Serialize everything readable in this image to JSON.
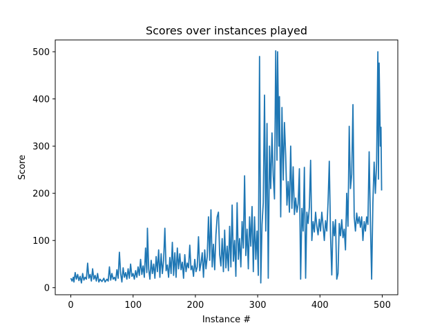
{
  "chart_data": {
    "type": "line",
    "title": "Scores over instances played",
    "xlabel": "Instance #",
    "ylabel": "Score",
    "xlim": [
      -25,
      525
    ],
    "ylim": [
      -15,
      525
    ],
    "xticks": [
      0,
      100,
      200,
      300,
      400,
      500
    ],
    "yticks": [
      0,
      100,
      200,
      300,
      400,
      500
    ],
    "grid": false,
    "legend": "none",
    "series": [
      {
        "color": "#1f77b4",
        "keypoints": [
          [
            0,
            20
          ],
          [
            2,
            14
          ],
          [
            4,
            22
          ],
          [
            5,
            12
          ],
          [
            7,
            32
          ],
          [
            9,
            18
          ],
          [
            11,
            28
          ],
          [
            13,
            15
          ],
          [
            15,
            24
          ],
          [
            17,
            10
          ],
          [
            19,
            30
          ],
          [
            21,
            16
          ],
          [
            23,
            22
          ],
          [
            25,
            18
          ],
          [
            27,
            52
          ],
          [
            29,
            20
          ],
          [
            31,
            28
          ],
          [
            33,
            14
          ],
          [
            35,
            40
          ],
          [
            37,
            18
          ],
          [
            39,
            26
          ],
          [
            41,
            14
          ],
          [
            43,
            30
          ],
          [
            45,
            12
          ],
          [
            47,
            18
          ],
          [
            50,
            13
          ],
          [
            53,
            20
          ],
          [
            55,
            12
          ],
          [
            58,
            18
          ],
          [
            60,
            14
          ],
          [
            62,
            44
          ],
          [
            64,
            16
          ],
          [
            66,
            30
          ],
          [
            68,
            18
          ],
          [
            70,
            22
          ],
          [
            72,
            15
          ],
          [
            74,
            38
          ],
          [
            76,
            20
          ],
          [
            78,
            75
          ],
          [
            80,
            30
          ],
          [
            82,
            12
          ],
          [
            84,
            42
          ],
          [
            86,
            22
          ],
          [
            88,
            32
          ],
          [
            90,
            18
          ],
          [
            92,
            40
          ],
          [
            94,
            20
          ],
          [
            96,
            50
          ],
          [
            98,
            24
          ],
          [
            100,
            30
          ],
          [
            102,
            18
          ],
          [
            104,
            36
          ],
          [
            106,
            22
          ],
          [
            108,
            44
          ],
          [
            110,
            26
          ],
          [
            112,
            60
          ],
          [
            114,
            28
          ],
          [
            116,
            46
          ],
          [
            118,
            22
          ],
          [
            120,
            84
          ],
          [
            122,
            32
          ],
          [
            123,
            126
          ],
          [
            125,
            40
          ],
          [
            127,
            18
          ],
          [
            129,
            58
          ],
          [
            131,
            30
          ],
          [
            133,
            50
          ],
          [
            135,
            20
          ],
          [
            137,
            66
          ],
          [
            139,
            34
          ],
          [
            141,
            80
          ],
          [
            143,
            22
          ],
          [
            145,
            72
          ],
          [
            147,
            30
          ],
          [
            149,
            58
          ],
          [
            151,
            126
          ],
          [
            153,
            36
          ],
          [
            155,
            48
          ],
          [
            157,
            22
          ],
          [
            159,
            64
          ],
          [
            161,
            30
          ],
          [
            163,
            96
          ],
          [
            165,
            26
          ],
          [
            167,
            74
          ],
          [
            169,
            22
          ],
          [
            171,
            84
          ],
          [
            173,
            40
          ],
          [
            175,
            72
          ],
          [
            177,
            38
          ],
          [
            179,
            54
          ],
          [
            181,
            20
          ],
          [
            183,
            70
          ],
          [
            185,
            34
          ],
          [
            187,
            52
          ],
          [
            189,
            42
          ],
          [
            191,
            90
          ],
          [
            193,
            38
          ],
          [
            195,
            46
          ],
          [
            197,
            24
          ],
          [
            199,
            60
          ],
          [
            201,
            34
          ],
          [
            203,
            44
          ],
          [
            205,
            108
          ],
          [
            207,
            36
          ],
          [
            209,
            52
          ],
          [
            211,
            74
          ],
          [
            213,
            22
          ],
          [
            215,
            80
          ],
          [
            217,
            40
          ],
          [
            219,
            66
          ],
          [
            221,
            150
          ],
          [
            223,
            58
          ],
          [
            225,
            165
          ],
          [
            227,
            44
          ],
          [
            229,
            92
          ],
          [
            231,
            38
          ],
          [
            233,
            112
          ],
          [
            235,
            150
          ],
          [
            237,
            160
          ],
          [
            239,
            70
          ],
          [
            241,
            46
          ],
          [
            243,
            104
          ],
          [
            245,
            34
          ],
          [
            247,
            122
          ],
          [
            249,
            42
          ],
          [
            251,
            88
          ],
          [
            253,
            36
          ],
          [
            255,
            130
          ],
          [
            257,
            44
          ],
          [
            259,
            175
          ],
          [
            261,
            56
          ],
          [
            263,
            100
          ],
          [
            265,
            24
          ],
          [
            267,
            180
          ],
          [
            269,
            60
          ],
          [
            271,
            104
          ],
          [
            273,
            44
          ],
          [
            275,
            140
          ],
          [
            277,
            84
          ],
          [
            279,
            237
          ],
          [
            281,
            68
          ],
          [
            283,
            124
          ],
          [
            285,
            40
          ],
          [
            287,
            150
          ],
          [
            289,
            88
          ],
          [
            291,
            172
          ],
          [
            293,
            34
          ],
          [
            295,
            150
          ],
          [
            297,
            60
          ],
          [
            299,
            120
          ],
          [
            301,
            26
          ],
          [
            303,
            490
          ],
          [
            305,
            10
          ],
          [
            307,
            134
          ],
          [
            309,
            180
          ],
          [
            311,
            408
          ],
          [
            313,
            120
          ],
          [
            315,
            348
          ],
          [
            317,
            20
          ],
          [
            319,
            300
          ],
          [
            321,
            210
          ],
          [
            323,
            328
          ],
          [
            325,
            238
          ],
          [
            327,
            188
          ],
          [
            329,
            502
          ],
          [
            331,
            270
          ],
          [
            332,
            500
          ],
          [
            334,
            300
          ],
          [
            335,
            405
          ],
          [
            337,
            150
          ],
          [
            339,
            382
          ],
          [
            341,
            228
          ],
          [
            343,
            350
          ],
          [
            345,
            280
          ],
          [
            347,
            175
          ],
          [
            349,
            225
          ],
          [
            351,
            160
          ],
          [
            353,
            300
          ],
          [
            355,
            168
          ],
          [
            357,
            256
          ],
          [
            359,
            155
          ],
          [
            361,
            190
          ],
          [
            363,
            160
          ],
          [
            365,
            178
          ],
          [
            367,
            252
          ],
          [
            369,
            18
          ],
          [
            371,
            168
          ],
          [
            373,
            120
          ],
          [
            375,
            255
          ],
          [
            377,
            20
          ],
          [
            379,
            160
          ],
          [
            381,
            136
          ],
          [
            383,
            170
          ],
          [
            385,
            270
          ],
          [
            387,
            100
          ],
          [
            389,
            140
          ],
          [
            391,
            118
          ],
          [
            393,
            160
          ],
          [
            395,
            130
          ],
          [
            397,
            112
          ],
          [
            399,
            145
          ],
          [
            401,
            120
          ],
          [
            403,
            160
          ],
          [
            405,
            132
          ],
          [
            407,
            100
          ],
          [
            409,
            142
          ],
          [
            411,
            120
          ],
          [
            413,
            180
          ],
          [
            415,
            268
          ],
          [
            417,
            112
          ],
          [
            419,
            27
          ],
          [
            421,
            140
          ],
          [
            423,
            110
          ],
          [
            425,
            144
          ],
          [
            427,
            18
          ],
          [
            429,
            30
          ],
          [
            431,
            136
          ],
          [
            433,
            110
          ],
          [
            435,
            144
          ],
          [
            437,
            106
          ],
          [
            439,
            124
          ],
          [
            441,
            80
          ],
          [
            443,
            200
          ],
          [
            445,
            130
          ],
          [
            447,
            342
          ],
          [
            449,
            210
          ],
          [
            451,
            240
          ],
          [
            453,
            388
          ],
          [
            455,
            150
          ],
          [
            457,
            120
          ],
          [
            459,
            158
          ],
          [
            461,
            136
          ],
          [
            463,
            150
          ],
          [
            465,
            128
          ],
          [
            467,
            150
          ],
          [
            469,
            100
          ],
          [
            471,
            140
          ],
          [
            473,
            120
          ],
          [
            475,
            150
          ],
          [
            477,
            134
          ],
          [
            479,
            288
          ],
          [
            481,
            140
          ],
          [
            483,
            18
          ],
          [
            485,
            180
          ],
          [
            487,
            266
          ],
          [
            489,
            200
          ],
          [
            491,
            265
          ],
          [
            493,
            500
          ],
          [
            494,
            230
          ],
          [
            495,
            476
          ],
          [
            497,
            300
          ],
          [
            498,
            340
          ],
          [
            499,
            206
          ]
        ]
      }
    ]
  }
}
